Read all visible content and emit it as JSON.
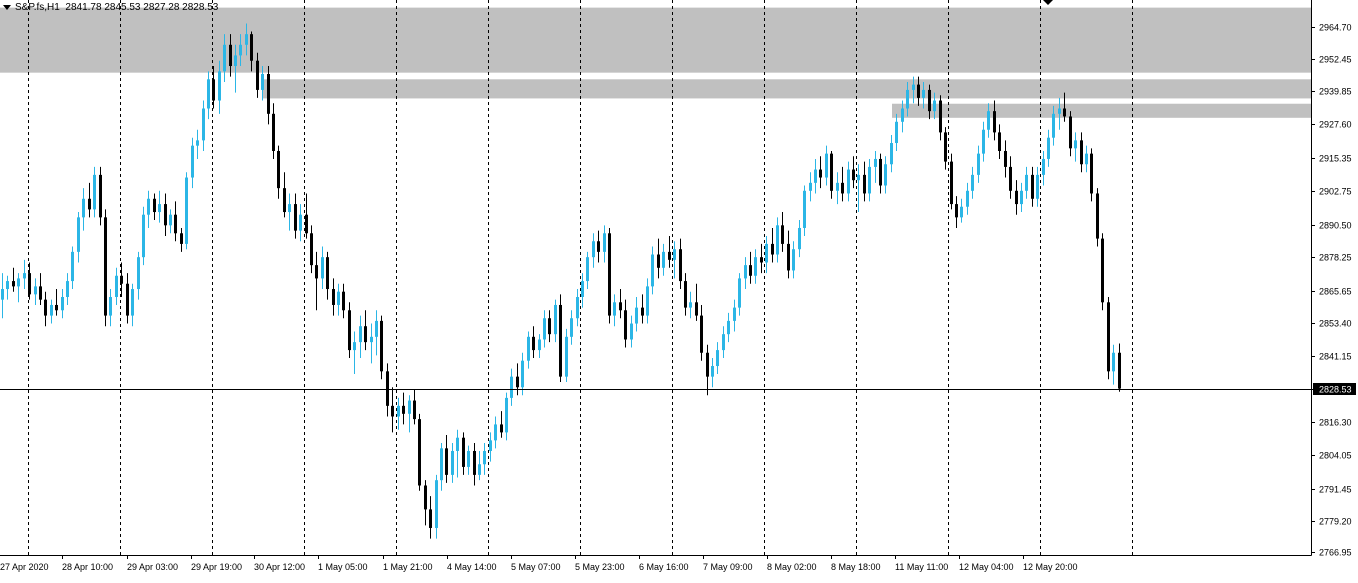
{
  "header": {
    "symbol": "S&P.fs,H1",
    "ohlc": "2841.78 2845.53 2827.28 2828.53"
  },
  "current_price_label": "2828.53",
  "colors": {
    "bull": "#2bb6e6",
    "bear": "#000000",
    "zone": "#c0c0c0",
    "grid": "#000000",
    "background": "#ffffff"
  },
  "chart_data": {
    "type": "candlestick",
    "price_axis_ticks": [
      "2964.70",
      "2952.45",
      "2939.85",
      "2927.60",
      "2915.35",
      "2902.75",
      "2890.50",
      "2878.25",
      "2865.65",
      "2853.40",
      "2841.15",
      "2828.53",
      "2816.30",
      "2804.05",
      "2791.45",
      "2779.20",
      "2766.95"
    ],
    "time_axis_labels": [
      "27 Apr 2020",
      "28 Apr 10:00",
      "29 Apr 03:00",
      "29 Apr 19:00",
      "30 Apr 12:00",
      "1 May 05:00",
      "1 May 21:00",
      "4 May 14:00",
      "5 May 07:00",
      "5 May 23:00",
      "6 May 16:00",
      "7 May 09:00",
      "8 May 02:00",
      "8 May 18:00",
      "11 May 11:00",
      "12 May 04:00",
      "12 May 20:00"
    ],
    "ylim": [
      2766.95,
      2972
    ],
    "current_price": 2828.53,
    "grid": "vertical dashed",
    "zones": [
      {
        "from": 2947.5,
        "to": 2972
      },
      {
        "from": 2937.8,
        "to": 2945.0
      },
      {
        "from": 2930.5,
        "to": 2935.8
      }
    ],
    "candles": [
      [
        2862.0,
        2872.0,
        2855.0,
        2866.0
      ],
      [
        2866.0,
        2871.0,
        2862.0,
        2869.0
      ],
      [
        2869.0,
        2874.0,
        2865.0,
        2867.0
      ],
      [
        2867.0,
        2872.0,
        2861.0,
        2870.0
      ],
      [
        2870.0,
        2877.0,
        2866.0,
        2872.0
      ],
      [
        2872.0,
        2876.0,
        2862.0,
        2864.0
      ],
      [
        2864.0,
        2870.0,
        2860.0,
        2867.0
      ],
      [
        2867.0,
        2872.0,
        2860.0,
        2862.0
      ],
      [
        2862.0,
        2865.0,
        2852.0,
        2856.0
      ],
      [
        2856.0,
        2862.0,
        2853.0,
        2860.0
      ],
      [
        2860.0,
        2866.0,
        2856.0,
        2858.0
      ],
      [
        2858.0,
        2866.0,
        2855.0,
        2863.0
      ],
      [
        2863.0,
        2872.0,
        2860.0,
        2869.0
      ],
      [
        2869.0,
        2882.0,
        2866.0,
        2880.0
      ],
      [
        2880.0,
        2895.0,
        2876.0,
        2893.0
      ],
      [
        2893.0,
        2904.0,
        2888.0,
        2900.0
      ],
      [
        2900.0,
        2906.0,
        2893.0,
        2896.0
      ],
      [
        2896.0,
        2912.0,
        2893.0,
        2909.0
      ],
      [
        2909.0,
        2912.0,
        2890.0,
        2893.0
      ],
      [
        2893.0,
        2896.0,
        2852.0,
        2856.0
      ],
      [
        2856.0,
        2866.0,
        2852.0,
        2863.0
      ],
      [
        2863.0,
        2874.0,
        2860.0,
        2871.0
      ],
      [
        2871.0,
        2876.0,
        2863.0,
        2868.0
      ],
      [
        2868.0,
        2872.0,
        2853.0,
        2856.0
      ],
      [
        2856.0,
        2868.0,
        2852.0,
        2866.0
      ],
      [
        2866.0,
        2880.0,
        2862.0,
        2878.0
      ],
      [
        2878.0,
        2897.0,
        2875.0,
        2894.0
      ],
      [
        2894.0,
        2903.0,
        2889.0,
        2900.0
      ],
      [
        2900.0,
        2902.0,
        2892.0,
        2895.0
      ],
      [
        2895.0,
        2903.0,
        2891.0,
        2898.0
      ],
      [
        2898.0,
        2902.0,
        2886.0,
        2890.0
      ],
      [
        2890.0,
        2896.0,
        2887.0,
        2894.0
      ],
      [
        2894.0,
        2899.0,
        2884.0,
        2887.0
      ],
      [
        2887.0,
        2889.0,
        2880.0,
        2883.0
      ],
      [
        2883.0,
        2910.0,
        2881.0,
        2908.0
      ],
      [
        2908.0,
        2923.0,
        2904.0,
        2920.0
      ],
      [
        2920.0,
        2926.0,
        2915.0,
        2922.0
      ],
      [
        2922.0,
        2937.0,
        2918.0,
        2934.0
      ],
      [
        2934.0,
        2948.0,
        2930.0,
        2945.0
      ],
      [
        2945.0,
        2950.0,
        2934.0,
        2937.0
      ],
      [
        2937.0,
        2952.0,
        2932.0,
        2948.0
      ],
      [
        2948.0,
        2962.0,
        2944.0,
        2958.0
      ],
      [
        2958.0,
        2962.0,
        2946.0,
        2950.0
      ],
      [
        2950.0,
        2958.0,
        2940.0,
        2954.0
      ],
      [
        2954.0,
        2962.0,
        2950.0,
        2958.0
      ],
      [
        2958.0,
        2966.0,
        2954.0,
        2962.0
      ],
      [
        2962.0,
        2963.0,
        2948.0,
        2952.0
      ],
      [
        2952.0,
        2955.0,
        2938.0,
        2941.0
      ],
      [
        2941.0,
        2950.0,
        2937.0,
        2947.0
      ],
      [
        2947.0,
        2950.0,
        2928.0,
        2932.0
      ],
      [
        2932.0,
        2936.0,
        2915.0,
        2918.0
      ],
      [
        2918.0,
        2920.0,
        2900.0,
        2904.0
      ],
      [
        2904.0,
        2910.0,
        2893.0,
        2895.0
      ],
      [
        2895.0,
        2902.0,
        2888.0,
        2898.0
      ],
      [
        2898.0,
        2902.0,
        2885.0,
        2888.0
      ],
      [
        2888.0,
        2898.0,
        2884.0,
        2894.0
      ],
      [
        2894.0,
        2902.0,
        2885.0,
        2887.0
      ],
      [
        2887.0,
        2890.0,
        2872.0,
        2875.0
      ],
      [
        2875.0,
        2880.0,
        2858.0,
        2870.0
      ],
      [
        2870.0,
        2882.0,
        2866.0,
        2878.0
      ],
      [
        2878.0,
        2880.0,
        2862.0,
        2866.0
      ],
      [
        2866.0,
        2870.0,
        2856.0,
        2860.0
      ],
      [
        2860.0,
        2868.0,
        2856.0,
        2865.0
      ],
      [
        2865.0,
        2868.0,
        2855.0,
        2858.0
      ],
      [
        2858.0,
        2861.0,
        2840.0,
        2843.0
      ],
      [
        2843.0,
        2850.0,
        2834.0,
        2846.0
      ],
      [
        2846.0,
        2856.0,
        2840.0,
        2852.0
      ],
      [
        2852.0,
        2858.0,
        2843.0,
        2846.0
      ],
      [
        2846.0,
        2853.0,
        2838.0,
        2848.0
      ],
      [
        2848.0,
        2858.0,
        2841.0,
        2854.0
      ],
      [
        2854.0,
        2856.0,
        2832.0,
        2835.0
      ],
      [
        2835.0,
        2838.0,
        2818.0,
        2822.0
      ],
      [
        2822.0,
        2829.0,
        2812.0,
        2818.0
      ],
      [
        2818.0,
        2825.0,
        2813.0,
        2822.0
      ],
      [
        2822.0,
        2827.0,
        2815.0,
        2819.0
      ],
      [
        2819.0,
        2826.0,
        2812.0,
        2824.0
      ],
      [
        2824.0,
        2828.0,
        2815.0,
        2817.0
      ],
      [
        2817.0,
        2819.0,
        2790.0,
        2792.0
      ],
      [
        2792.0,
        2794.0,
        2777.0,
        2783.0
      ],
      [
        2783.0,
        2788.0,
        2772.0,
        2776.0
      ],
      [
        2776.0,
        2796.0,
        2772.0,
        2794.0
      ],
      [
        2794.0,
        2808.0,
        2790.0,
        2806.0
      ],
      [
        2806.0,
        2811.0,
        2793.0,
        2796.0
      ],
      [
        2796.0,
        2808.0,
        2793.0,
        2805.0
      ],
      [
        2805.0,
        2813.0,
        2795.0,
        2810.0
      ],
      [
        2810.0,
        2812.0,
        2796.0,
        2799.0
      ],
      [
        2799.0,
        2807.0,
        2796.0,
        2805.0
      ],
      [
        2805.0,
        2808.0,
        2792.0,
        2796.0
      ],
      [
        2796.0,
        2805.0,
        2794.0,
        2800.0
      ],
      [
        2800.0,
        2808.0,
        2796.0,
        2805.0
      ],
      [
        2805.0,
        2812.0,
        2801.0,
        2809.0
      ],
      [
        2809.0,
        2818.0,
        2806.0,
        2815.0
      ],
      [
        2815.0,
        2820.0,
        2810.0,
        2812.0
      ],
      [
        2812.0,
        2827.0,
        2809.0,
        2825.0
      ],
      [
        2825.0,
        2836.0,
        2822.0,
        2833.0
      ],
      [
        2833.0,
        2838.0,
        2826.0,
        2829.0
      ],
      [
        2829.0,
        2842.0,
        2826.0,
        2839.0
      ],
      [
        2839.0,
        2850.0,
        2836.0,
        2848.0
      ],
      [
        2848.0,
        2852.0,
        2840.0,
        2843.0
      ],
      [
        2843.0,
        2849.0,
        2840.0,
        2847.0
      ],
      [
        2847.0,
        2858.0,
        2844.0,
        2855.0
      ],
      [
        2855.0,
        2858.0,
        2846.0,
        2849.0
      ],
      [
        2849.0,
        2862.0,
        2846.0,
        2860.0
      ],
      [
        2860.0,
        2864.0,
        2831.0,
        2833.0
      ],
      [
        2833.0,
        2851.0,
        2831.0,
        2848.0
      ],
      [
        2848.0,
        2858.0,
        2845.0,
        2855.0
      ],
      [
        2855.0,
        2866.0,
        2852.0,
        2863.0
      ],
      [
        2863.0,
        2872.0,
        2859.0,
        2869.0
      ],
      [
        2869.0,
        2880.0,
        2866.0,
        2878.0
      ],
      [
        2878.0,
        2887.0,
        2874.0,
        2884.0
      ],
      [
        2884.0,
        2888.0,
        2876.0,
        2880.0
      ],
      [
        2880.0,
        2890.0,
        2876.0,
        2887.0
      ],
      [
        2887.0,
        2889.0,
        2853.0,
        2856.0
      ],
      [
        2856.0,
        2864.0,
        2852.0,
        2861.0
      ],
      [
        2861.0,
        2866.0,
        2855.0,
        2858.0
      ],
      [
        2858.0,
        2862.0,
        2844.0,
        2847.0
      ],
      [
        2847.0,
        2856.0,
        2844.0,
        2853.0
      ],
      [
        2853.0,
        2863.0,
        2850.0,
        2859.0
      ],
      [
        2859.0,
        2864.0,
        2853.0,
        2856.0
      ],
      [
        2856.0,
        2870.0,
        2853.0,
        2867.0
      ],
      [
        2867.0,
        2882.0,
        2864.0,
        2879.0
      ],
      [
        2879.0,
        2885.0,
        2870.0,
        2874.0
      ],
      [
        2874.0,
        2883.0,
        2871.0,
        2880.0
      ],
      [
        2880.0,
        2886.0,
        2874.0,
        2877.0
      ],
      [
        2877.0,
        2884.0,
        2870.0,
        2881.0
      ],
      [
        2881.0,
        2885.0,
        2866.0,
        2869.0
      ],
      [
        2869.0,
        2872.0,
        2856.0,
        2859.0
      ],
      [
        2859.0,
        2865.0,
        2855.0,
        2861.0
      ],
      [
        2861.0,
        2868.0,
        2854.0,
        2856.0
      ],
      [
        2856.0,
        2860.0,
        2839.0,
        2842.0
      ],
      [
        2842.0,
        2845.0,
        2826.0,
        2833.0
      ],
      [
        2833.0,
        2840.0,
        2829.0,
        2837.0
      ],
      [
        2837.0,
        2846.0,
        2834.0,
        2843.0
      ],
      [
        2843.0,
        2852.0,
        2840.0,
        2849.0
      ],
      [
        2849.0,
        2857.0,
        2846.0,
        2854.0
      ],
      [
        2854.0,
        2862.0,
        2850.0,
        2859.0
      ],
      [
        2859.0,
        2872.0,
        2856.0,
        2870.0
      ],
      [
        2870.0,
        2878.0,
        2866.0,
        2875.0
      ],
      [
        2875.0,
        2880.0,
        2868.0,
        2871.0
      ],
      [
        2871.0,
        2881.0,
        2868.0,
        2878.0
      ],
      [
        2878.0,
        2883.0,
        2872.0,
        2876.0
      ],
      [
        2876.0,
        2886.0,
        2872.0,
        2883.0
      ],
      [
        2883.0,
        2889.0,
        2876.0,
        2879.0
      ],
      [
        2879.0,
        2893.0,
        2876.0,
        2890.0
      ],
      [
        2890.0,
        2895.0,
        2880.0,
        2883.0
      ],
      [
        2883.0,
        2888.0,
        2870.0,
        2873.0
      ],
      [
        2873.0,
        2884.0,
        2870.0,
        2881.0
      ],
      [
        2881.0,
        2892.0,
        2878.0,
        2889.0
      ],
      [
        2889.0,
        2905.0,
        2886.0,
        2903.0
      ],
      [
        2903.0,
        2910.0,
        2899.0,
        2906.0
      ],
      [
        2906.0,
        2915.0,
        2902.0,
        2911.0
      ],
      [
        2911.0,
        2916.0,
        2904.0,
        2908.0
      ],
      [
        2908.0,
        2920.0,
        2905.0,
        2917.0
      ],
      [
        2917.0,
        2918.0,
        2900.0,
        2903.0
      ],
      [
        2903.0,
        2910.0,
        2898.0,
        2906.0
      ],
      [
        2906.0,
        2912.0,
        2899.0,
        2902.0
      ],
      [
        2902.0,
        2914.0,
        2899.0,
        2911.0
      ],
      [
        2911.0,
        2916.0,
        2904.0,
        2907.0
      ],
      [
        2907.0,
        2913.0,
        2895.0,
        2909.0
      ],
      [
        2909.0,
        2914.0,
        2899.0,
        2902.0
      ],
      [
        2902.0,
        2915.0,
        2899.0,
        2912.0
      ],
      [
        2912.0,
        2918.0,
        2906.0,
        2915.0
      ],
      [
        2915.0,
        2917.0,
        2902.0,
        2905.0
      ],
      [
        2905.0,
        2916.0,
        2902.0,
        2913.0
      ],
      [
        2913.0,
        2924.0,
        2910.0,
        2921.0
      ],
      [
        2921.0,
        2932.0,
        2918.0,
        2929.0
      ],
      [
        2929.0,
        2937.0,
        2925.0,
        2934.0
      ],
      [
        2934.0,
        2944.0,
        2931.0,
        2941.0
      ],
      [
        2941.0,
        2946.0,
        2936.0,
        2943.0
      ],
      [
        2943.0,
        2946.0,
        2935.0,
        2938.0
      ],
      [
        2938.0,
        2944.0,
        2934.0,
        2941.0
      ],
      [
        2941.0,
        2943.0,
        2930.0,
        2933.0
      ],
      [
        2933.0,
        2940.0,
        2930.0,
        2937.0
      ],
      [
        2937.0,
        2939.0,
        2922.0,
        2925.0
      ],
      [
        2925.0,
        2927.0,
        2911.0,
        2914.0
      ],
      [
        2914.0,
        2917.0,
        2896.0,
        2898.0
      ],
      [
        2898.0,
        2901.0,
        2889.0,
        2893.0
      ],
      [
        2893.0,
        2900.0,
        2891.0,
        2897.0
      ],
      [
        2897.0,
        2906.0,
        2894.0,
        2903.0
      ],
      [
        2903.0,
        2912.0,
        2900.0,
        2909.0
      ],
      [
        2909.0,
        2920.0,
        2906.0,
        2917.0
      ],
      [
        2917.0,
        2929.0,
        2914.0,
        2926.0
      ],
      [
        2926.0,
        2936.0,
        2923.0,
        2933.0
      ],
      [
        2933.0,
        2937.0,
        2922.0,
        2925.0
      ],
      [
        2925.0,
        2928.0,
        2915.0,
        2918.0
      ],
      [
        2918.0,
        2922.0,
        2908.0,
        2912.0
      ],
      [
        2912.0,
        2916.0,
        2900.0,
        2903.0
      ],
      [
        2903.0,
        2907.0,
        2894.0,
        2898.0
      ],
      [
        2898.0,
        2906.0,
        2895.0,
        2903.0
      ],
      [
        2903.0,
        2912.0,
        2900.0,
        2909.0
      ],
      [
        2909.0,
        2912.0,
        2897.0,
        2900.0
      ],
      [
        2900.0,
        2912.0,
        2897.0,
        2909.0
      ],
      [
        2909.0,
        2918.0,
        2905.0,
        2915.0
      ],
      [
        2915.0,
        2926.0,
        2912.0,
        2923.0
      ],
      [
        2923.0,
        2935.0,
        2920.0,
        2932.0
      ],
      [
        2932.0,
        2938.0,
        2926.0,
        2934.0
      ],
      [
        2934.0,
        2940.0,
        2929.0,
        2931.0
      ],
      [
        2931.0,
        2933.0,
        2916.0,
        2919.0
      ],
      [
        2919.0,
        2925.0,
        2914.0,
        2922.0
      ],
      [
        2922.0,
        2925.0,
        2910.0,
        2913.0
      ],
      [
        2913.0,
        2920.0,
        2910.0,
        2917.0
      ],
      [
        2917.0,
        2919.0,
        2899.0,
        2902.0
      ],
      [
        2902.0,
        2904.0,
        2882.0,
        2885.0
      ],
      [
        2885.0,
        2887.0,
        2858.0,
        2861.0
      ],
      [
        2861.0,
        2863.0,
        2832.0,
        2835.0
      ],
      [
        2835.0,
        2845.0,
        2830.0,
        2842.0
      ],
      [
        2842.0,
        2845.5,
        2827.3,
        2828.5
      ]
    ]
  }
}
